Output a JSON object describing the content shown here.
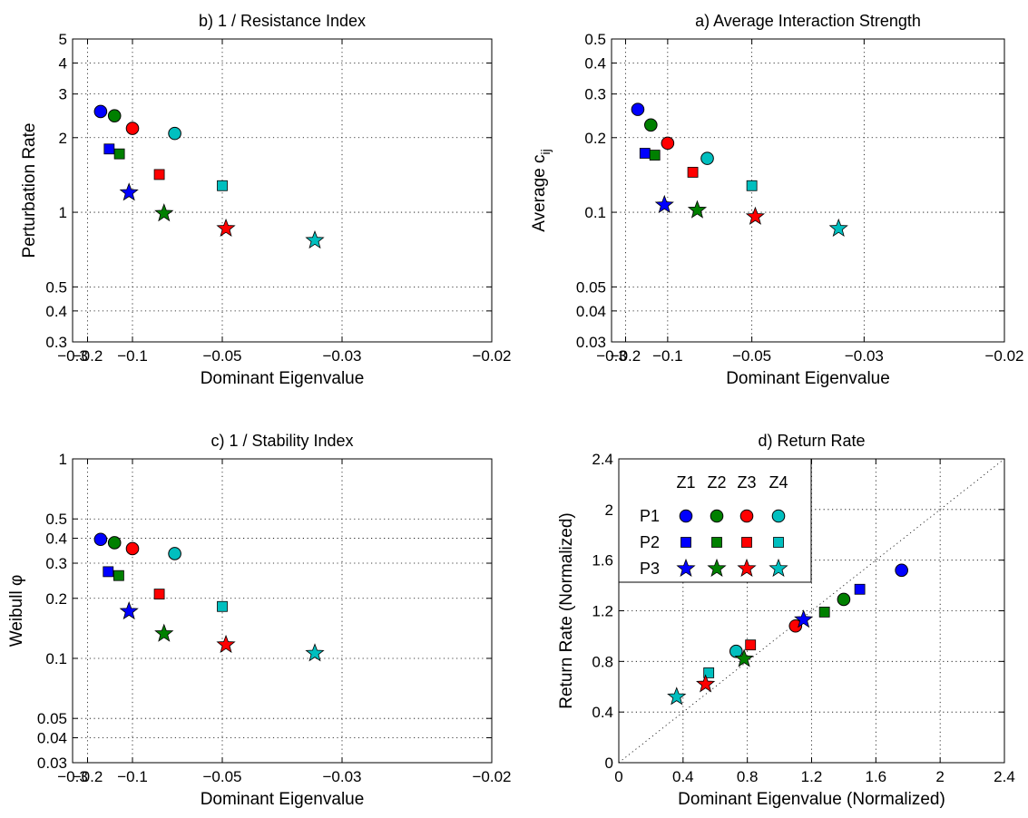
{
  "colors": {
    "Z1": "#0000ff",
    "Z2": "#008000",
    "Z3": "#ff0000",
    "Z4": "#00bfbf"
  },
  "chart_data": [
    {
      "id": "b",
      "type": "scatter",
      "title": "b) 1 / Resistance Index",
      "xlabel": "Dominant Eigenvalue",
      "ylabel": "Perturbation Rate",
      "xscale": "reciprocal",
      "yscale": "log",
      "xlim": [
        -0.3,
        -0.02
      ],
      "ylim": [
        0.3,
        5
      ],
      "xticks": [
        -0.3,
        -0.2,
        -0.1,
        -0.05,
        -0.03,
        -0.02
      ],
      "xticklabels": [
        "−0.3",
        "−0.2",
        "−0.1",
        "−0.05",
        "−0.03",
        "−0.02"
      ],
      "yticks": [
        0.3,
        0.4,
        0.5,
        1,
        2,
        3,
        4,
        5
      ],
      "yticklabels": [
        "0.3",
        "0.4",
        "0.5",
        "1",
        "2",
        "3",
        "4",
        "5"
      ],
      "grid": true,
      "points": [
        {
          "x": -0.155,
          "y": 2.55,
          "marker": "circle",
          "color": "Z1"
        },
        {
          "x": -0.125,
          "y": 2.45,
          "marker": "circle",
          "color": "Z2"
        },
        {
          "x": -0.1,
          "y": 2.18,
          "marker": "circle",
          "color": "Z3"
        },
        {
          "x": -0.068,
          "y": 2.08,
          "marker": "circle",
          "color": "Z4"
        },
        {
          "x": -0.135,
          "y": 1.8,
          "marker": "square",
          "color": "Z1"
        },
        {
          "x": -0.117,
          "y": 1.72,
          "marker": "square",
          "color": "Z2"
        },
        {
          "x": -0.077,
          "y": 1.42,
          "marker": "square",
          "color": "Z3"
        },
        {
          "x": -0.05,
          "y": 1.28,
          "marker": "square",
          "color": "Z4"
        },
        {
          "x": -0.104,
          "y": 1.2,
          "marker": "star",
          "color": "Z1"
        },
        {
          "x": -0.074,
          "y": 0.99,
          "marker": "star",
          "color": "Z2"
        },
        {
          "x": -0.049,
          "y": 0.86,
          "marker": "star",
          "color": "Z3"
        },
        {
          "x": -0.033,
          "y": 0.77,
          "marker": "star",
          "color": "Z4"
        }
      ]
    },
    {
      "id": "a",
      "type": "scatter",
      "title": "a) Average Interaction Strength",
      "xlabel": "Dominant Eigenvalue",
      "ylabel": "Average c",
      "ylabel_sub": "ij",
      "xscale": "reciprocal",
      "yscale": "log",
      "xlim": [
        -0.3,
        -0.02
      ],
      "ylim": [
        0.03,
        0.5
      ],
      "xticks": [
        -0.3,
        -0.2,
        -0.1,
        -0.05,
        -0.03,
        -0.02
      ],
      "xticklabels": [
        "−0.3",
        "−0.2",
        "−0.1",
        "−0.05",
        "−0.03",
        "−0.02"
      ],
      "yticks": [
        0.03,
        0.04,
        0.05,
        0.1,
        0.2,
        0.3,
        0.4,
        0.5
      ],
      "yticklabels": [
        "0.03",
        "0.04",
        "0.05",
        "0.1",
        "0.2",
        "0.3",
        "0.4",
        "0.5"
      ],
      "grid": true,
      "points": [
        {
          "x": -0.155,
          "y": 0.26,
          "marker": "circle",
          "color": "Z1"
        },
        {
          "x": -0.125,
          "y": 0.225,
          "marker": "circle",
          "color": "Z2"
        },
        {
          "x": -0.1,
          "y": 0.19,
          "marker": "circle",
          "color": "Z3"
        },
        {
          "x": -0.068,
          "y": 0.165,
          "marker": "circle",
          "color": "Z4"
        },
        {
          "x": -0.137,
          "y": 0.173,
          "marker": "square",
          "color": "Z1"
        },
        {
          "x": -0.118,
          "y": 0.17,
          "marker": "square",
          "color": "Z2"
        },
        {
          "x": -0.077,
          "y": 0.145,
          "marker": "square",
          "color": "Z3"
        },
        {
          "x": -0.05,
          "y": 0.128,
          "marker": "square",
          "color": "Z4"
        },
        {
          "x": -0.104,
          "y": 0.107,
          "marker": "star",
          "color": "Z1"
        },
        {
          "x": -0.074,
          "y": 0.102,
          "marker": "star",
          "color": "Z2"
        },
        {
          "x": -0.049,
          "y": 0.096,
          "marker": "star",
          "color": "Z3"
        },
        {
          "x": -0.033,
          "y": 0.086,
          "marker": "star",
          "color": "Z4"
        }
      ]
    },
    {
      "id": "c",
      "type": "scatter",
      "title": "c) 1 / Stability Index",
      "xlabel": "Dominant Eigenvalue",
      "ylabel": "Weibull φ",
      "xscale": "reciprocal",
      "yscale": "log",
      "xlim": [
        -0.3,
        -0.02
      ],
      "ylim": [
        0.03,
        1
      ],
      "xticks": [
        -0.3,
        -0.2,
        -0.1,
        -0.05,
        -0.03,
        -0.02
      ],
      "xticklabels": [
        "−0.3",
        "−0.2",
        "−0.1",
        "−0.05",
        "−0.03",
        "−0.02"
      ],
      "yticks": [
        0.03,
        0.04,
        0.05,
        0.1,
        0.2,
        0.3,
        0.4,
        0.5,
        1
      ],
      "yticklabels": [
        "0.03",
        "0.04",
        "0.05",
        "0.1",
        "0.2",
        "0.3",
        "0.4",
        "0.5",
        "1"
      ],
      "grid": true,
      "points": [
        {
          "x": -0.155,
          "y": 0.395,
          "marker": "circle",
          "color": "Z1"
        },
        {
          "x": -0.125,
          "y": 0.38,
          "marker": "circle",
          "color": "Z2"
        },
        {
          "x": -0.1,
          "y": 0.355,
          "marker": "circle",
          "color": "Z3"
        },
        {
          "x": -0.068,
          "y": 0.335,
          "marker": "circle",
          "color": "Z4"
        },
        {
          "x": -0.137,
          "y": 0.272,
          "marker": "square",
          "color": "Z1"
        },
        {
          "x": -0.118,
          "y": 0.26,
          "marker": "square",
          "color": "Z2"
        },
        {
          "x": -0.077,
          "y": 0.21,
          "marker": "square",
          "color": "Z3"
        },
        {
          "x": -0.05,
          "y": 0.182,
          "marker": "square",
          "color": "Z4"
        },
        {
          "x": -0.104,
          "y": 0.172,
          "marker": "star",
          "color": "Z1"
        },
        {
          "x": -0.074,
          "y": 0.133,
          "marker": "star",
          "color": "Z2"
        },
        {
          "x": -0.049,
          "y": 0.117,
          "marker": "star",
          "color": "Z3"
        },
        {
          "x": -0.033,
          "y": 0.106,
          "marker": "star",
          "color": "Z4"
        }
      ]
    },
    {
      "id": "d",
      "type": "scatter",
      "title": "d) Return Rate",
      "xlabel": "Dominant Eigenvalue (Normalized)",
      "ylabel": "Return Rate (Normalized)",
      "xscale": "linear",
      "yscale": "linear",
      "xlim": [
        0,
        2.4
      ],
      "ylim": [
        0,
        2.4
      ],
      "xticks": [
        0,
        0.4,
        0.8,
        1.2,
        1.6,
        2,
        2.4
      ],
      "xticklabels": [
        "0",
        "0.4",
        "0.8",
        "1.2",
        "1.6",
        "2",
        "2.4"
      ],
      "yticks": [
        0,
        0.4,
        0.8,
        1.2,
        1.6,
        2,
        2.4
      ],
      "yticklabels": [
        "0",
        "0.4",
        "0.8",
        "1.2",
        "1.6",
        "2",
        "2.4"
      ],
      "grid": true,
      "diagonal_reference_line": true,
      "legend": {
        "location": "top-left",
        "columns": [
          "Z1",
          "Z2",
          "Z3",
          "Z4"
        ],
        "rows": [
          {
            "label": "P1",
            "marker": "circle"
          },
          {
            "label": "P2",
            "marker": "square"
          },
          {
            "label": "P3",
            "marker": "star"
          }
        ]
      },
      "points": [
        {
          "x": 1.76,
          "y": 1.52,
          "marker": "circle",
          "color": "Z1"
        },
        {
          "x": 1.4,
          "y": 1.29,
          "marker": "circle",
          "color": "Z2"
        },
        {
          "x": 1.1,
          "y": 1.08,
          "marker": "circle",
          "color": "Z3"
        },
        {
          "x": 0.73,
          "y": 0.88,
          "marker": "circle",
          "color": "Z4"
        },
        {
          "x": 1.5,
          "y": 1.37,
          "marker": "square",
          "color": "Z1"
        },
        {
          "x": 1.28,
          "y": 1.19,
          "marker": "square",
          "color": "Z2"
        },
        {
          "x": 0.82,
          "y": 0.93,
          "marker": "square",
          "color": "Z3"
        },
        {
          "x": 0.56,
          "y": 0.71,
          "marker": "square",
          "color": "Z4"
        },
        {
          "x": 1.15,
          "y": 1.13,
          "marker": "star",
          "color": "Z1"
        },
        {
          "x": 0.78,
          "y": 0.82,
          "marker": "star",
          "color": "Z2"
        },
        {
          "x": 0.54,
          "y": 0.62,
          "marker": "star",
          "color": "Z3"
        },
        {
          "x": 0.36,
          "y": 0.52,
          "marker": "star",
          "color": "Z4"
        }
      ]
    }
  ]
}
